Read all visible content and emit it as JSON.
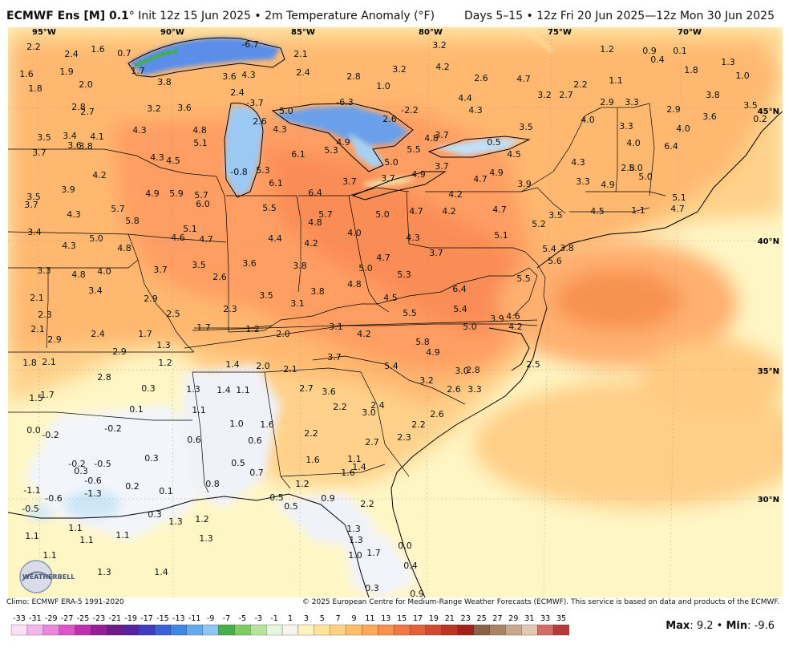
{
  "header": {
    "model": "ECMWF Ens [M] 0.1",
    "degree": "°",
    "init": "Init 12z 15 Jun 2025",
    "product": "2m Temperature Anomaly (°F)",
    "valid": "Days 5–15 • 12z Fri 20 Jun 2025—12z Mon 30 Jun 2025"
  },
  "footer": {
    "climo": "Climo: ECMWF ERA-5 1991-2020",
    "copyright": "© 2025 European Centre for Medium-Range Weather Forecasts (ECMWF). This service is based on data and products of the ECMWF.",
    "max_label": "Max",
    "max_value": "9.2",
    "min_label": "Min",
    "min_value": "-9.6"
  },
  "logo": "WEATHERBELL",
  "lon_labels": [
    "95°W",
    "90°W",
    "85°W",
    "80°W",
    "75°W",
    "70°W"
  ],
  "lat_labels": [
    "45°N",
    "40°N",
    "35°N",
    "30°N"
  ],
  "legend": {
    "ticks": [
      "-33",
      "-31",
      "-29",
      "-27",
      "-25",
      "-23",
      "-21",
      "-19",
      "-17",
      "-15",
      "-13",
      "-11",
      "-9",
      "-7",
      "-5",
      "-3",
      "-1",
      "1",
      "3",
      "5",
      "7",
      "9",
      "11",
      "13",
      "15",
      "17",
      "19",
      "21",
      "23",
      "25",
      "27",
      "29",
      "31",
      "33",
      "35"
    ],
    "colors": [
      "#fce0f8",
      "#f4b5ec",
      "#ea86dc",
      "#dc55c8",
      "#c02fb0",
      "#951f97",
      "#6e1b86",
      "#5423a0",
      "#3f3cc0",
      "#3a62d8",
      "#3f86e6",
      "#66a8ee",
      "#8fc5f2",
      "#46b04a",
      "#7fcc60",
      "#b5e49a",
      "#e6f5df",
      "#f6f4ea",
      "#fff3c0",
      "#ffe49a",
      "#ffd383",
      "#ffbf6c",
      "#ffa95a",
      "#f8914e",
      "#f07845",
      "#e2603a",
      "#cf4a2f",
      "#b93524",
      "#a0221b",
      "#8a6248",
      "#a98364",
      "#c7a88c",
      "#e0c8b2",
      "#d56a6a",
      "#b53a3a"
    ]
  },
  "map_labels": [
    [
      "2.2",
      42,
      58
    ],
    [
      "1.6",
      122,
      61
    ],
    [
      "2.4",
      89,
      67
    ],
    [
      "0.7",
      155,
      66
    ],
    [
      "-6.7",
      312,
      55
    ],
    [
      "2.1",
      375,
      67
    ],
    [
      "3.2",
      548,
      56
    ],
    [
      "1.2",
      757,
      61
    ],
    [
      "0.9",
      810,
      63
    ],
    [
      "0.1",
      848,
      63
    ],
    [
      "1.3",
      908,
      77
    ],
    [
      "0.4",
      820,
      74
    ],
    [
      "1.6",
      33,
      92
    ],
    [
      "1.9",
      83,
      89
    ],
    [
      "1.7",
      172,
      88
    ],
    [
      "3.6",
      286,
      95
    ],
    [
      "4.3",
      310,
      93
    ],
    [
      "2.4",
      378,
      90
    ],
    [
      "2.8",
      441,
      95
    ],
    [
      "3.2",
      498,
      86
    ],
    [
      "4.2",
      552,
      83
    ],
    [
      "2.6",
      600,
      97
    ],
    [
      "4.7",
      653,
      98
    ],
    [
      "1.8",
      862,
      87
    ],
    [
      "1.0",
      926,
      94
    ],
    [
      "1.8",
      44,
      110
    ],
    [
      "2.0",
      107,
      105
    ],
    [
      "3.8",
      205,
      102
    ],
    [
      "2.4",
      296,
      115
    ],
    [
      "1.0",
      478,
      107
    ],
    [
      "2.2",
      724,
      105
    ],
    [
      "1.1",
      768,
      100
    ],
    [
      "2.8",
      98,
      133
    ],
    [
      "2.7",
      109,
      139
    ],
    [
      "3.2",
      192,
      135
    ],
    [
      "3.6",
      230,
      134
    ],
    [
      "-3.7",
      318,
      128
    ],
    [
      "-6.3",
      430,
      127
    ],
    [
      "4.4",
      580,
      122
    ],
    [
      "3.2",
      679,
      118
    ],
    [
      "2.7",
      706,
      118
    ],
    [
      "2.9",
      757,
      127
    ],
    [
      "3.3",
      788,
      127
    ],
    [
      "3.8",
      889,
      118
    ],
    [
      "2.9",
      840,
      136
    ],
    [
      "3.5",
      936,
      131
    ],
    [
      "3.6",
      885,
      145
    ],
    [
      "-2.2",
      511,
      137
    ],
    [
      "2.6",
      486,
      148
    ],
    [
      "4.3",
      593,
      137
    ],
    [
      "4.0",
      733,
      149
    ],
    [
      "0.2",
      948,
      148
    ],
    [
      "5.0",
      357,
      138
    ],
    [
      "2.6",
      324,
      151
    ],
    [
      "4.3",
      349,
      161
    ],
    [
      "4.3",
      174,
      162
    ],
    [
      "4.8",
      249,
      162
    ],
    [
      "3.5",
      656,
      158
    ],
    [
      "3.3",
      781,
      157
    ],
    [
      "4.0",
      852,
      160
    ],
    [
      "6.4",
      837,
      182
    ],
    [
      "3.5",
      55,
      171
    ],
    [
      "3.4",
      87,
      169
    ],
    [
      "4.1",
      121,
      170
    ],
    [
      "3.6",
      93,
      181
    ],
    [
      "3.8",
      107,
      182
    ],
    [
      "5.1",
      250,
      178
    ],
    [
      "5.3",
      413,
      187
    ],
    [
      "4.9",
      428,
      177
    ],
    [
      "4.8",
      538,
      172
    ],
    [
      "3.7",
      551,
      168
    ],
    [
      "0.5",
      616,
      177
    ],
    [
      "4.5",
      641,
      192
    ],
    [
      "4.0",
      790,
      178
    ],
    [
      "3.7",
      49,
      190
    ],
    [
      "6.1",
      372,
      192
    ],
    [
      "5.5",
      516,
      186
    ],
    [
      "4.3",
      196,
      196
    ],
    [
      "4.5",
      216,
      200
    ],
    [
      "5.0",
      488,
      202
    ],
    [
      "4.3",
      721,
      202
    ],
    [
      "2.8",
      783,
      209
    ],
    [
      "5.0",
      793,
      209
    ],
    [
      "5.0",
      805,
      220
    ],
    [
      "-0.8",
      298,
      214
    ],
    [
      "5.3",
      328,
      212
    ],
    [
      "3.7",
      551,
      207
    ],
    [
      "4.2",
      124,
      218
    ],
    [
      "3.7",
      484,
      222
    ],
    [
      "4.9",
      522,
      217
    ],
    [
      "4.7",
      599,
      223
    ],
    [
      "4.9",
      619,
      215
    ],
    [
      "3.3",
      727,
      226
    ],
    [
      "3.9",
      654,
      229
    ],
    [
      "4.9",
      758,
      230
    ],
    [
      "6.1",
      344,
      228
    ],
    [
      "3.7",
      436,
      226
    ],
    [
      "3.9",
      85,
      236
    ],
    [
      "4.9",
      190,
      241
    ],
    [
      "5.9",
      220,
      241
    ],
    [
      "5.7",
      251,
      243
    ],
    [
      "6.4",
      393,
      240
    ],
    [
      "4.2",
      568,
      242
    ],
    [
      "5.1",
      847,
      246
    ],
    [
      "3.5",
      42,
      245
    ],
    [
      "6.0",
      253,
      254
    ],
    [
      "5.5",
      336,
      259
    ],
    [
      "4.7",
      845,
      260
    ],
    [
      "3.7",
      39,
      255
    ],
    [
      "4.2",
      560,
      263
    ],
    [
      "4.7",
      623,
      261
    ],
    [
      "4.7",
      519,
      263
    ],
    [
      "4.5",
      745,
      263
    ],
    [
      "1.1",
      796,
      262
    ],
    [
      "5.7",
      147,
      260
    ],
    [
      "4.3",
      92,
      267
    ],
    [
      "3.5",
      693,
      268
    ],
    [
      "5.7",
      406,
      267
    ],
    [
      "5.0",
      477,
      267
    ],
    [
      "5.8",
      165,
      275
    ],
    [
      "4.8",
      393,
      277
    ],
    [
      "5.2",
      672,
      279
    ],
    [
      "5.1",
      237,
      285
    ],
    [
      "4.0",
      442,
      290
    ],
    [
      "3.4",
      43,
      289
    ],
    [
      "5.0",
      120,
      297
    ],
    [
      "4.6",
      222,
      296
    ],
    [
      "4.7",
      257,
      298
    ],
    [
      "4.4",
      343,
      297
    ],
    [
      "4.3",
      515,
      296
    ],
    [
      "5.1",
      625,
      293
    ],
    [
      "4.2",
      388,
      303
    ],
    [
      "4.3",
      86,
      306
    ],
    [
      "4.8",
      155,
      309
    ],
    [
      "5.4",
      685,
      310
    ],
    [
      "3.8",
      707,
      309
    ],
    [
      "3.7",
      544,
      315
    ],
    [
      "4.7",
      478,
      321
    ],
    [
      "5.6",
      692,
      325
    ],
    [
      "3.3",
      55,
      337
    ],
    [
      "4.8",
      98,
      342
    ],
    [
      "4.0",
      130,
      338
    ],
    [
      "3.6",
      311,
      328
    ],
    [
      "3.8",
      374,
      331
    ],
    [
      "3.7",
      200,
      336
    ],
    [
      "3.5",
      248,
      330
    ],
    [
      "5.0",
      456,
      334
    ],
    [
      "5.3",
      504,
      342
    ],
    [
      "5.5",
      653,
      347
    ],
    [
      "2.6",
      274,
      345
    ],
    [
      "4.8",
      442,
      354
    ],
    [
      "6.4",
      573,
      360
    ],
    [
      "3.4",
      119,
      362
    ],
    [
      "3.8",
      396,
      363
    ],
    [
      "3.5",
      332,
      368
    ],
    [
      "2.9",
      188,
      372
    ],
    [
      "4.5",
      487,
      371
    ],
    [
      "2.1",
      46,
      371
    ],
    [
      "3.1",
      371,
      378
    ],
    [
      "5.4",
      574,
      385
    ],
    [
      "2.3",
      287,
      385
    ],
    [
      "2.5",
      216,
      391
    ],
    [
      "5.5",
      511,
      390
    ],
    [
      "2.3",
      56,
      392
    ],
    [
      "3.9",
      620,
      397
    ],
    [
      "4.6",
      640,
      394
    ],
    [
      "4.2",
      643,
      407
    ],
    [
      "5.0",
      586,
      407
    ],
    [
      "1.7",
      254,
      408
    ],
    [
      "1.2",
      315,
      410
    ],
    [
      "2.0",
      353,
      416
    ],
    [
      "3.1",
      419,
      407
    ],
    [
      "4.2",
      454,
      416
    ],
    [
      "2.1",
      47,
      410
    ],
    [
      "2.4",
      122,
      416
    ],
    [
      "1.7",
      181,
      416
    ],
    [
      "2.9",
      68,
      423
    ],
    [
      "1.3",
      204,
      430
    ],
    [
      "5.8",
      527,
      426
    ],
    [
      "4.9",
      540,
      439
    ],
    [
      "2.9",
      149,
      438
    ],
    [
      "3.7",
      417,
      445
    ],
    [
      "1.8",
      37,
      452
    ],
    [
      "2.1",
      61,
      451
    ],
    [
      "1.4",
      290,
      454
    ],
    [
      "2.0",
      328,
      456
    ],
    [
      "2.1",
      362,
      460
    ],
    [
      "1.2",
      206,
      452
    ],
    [
      "5.4",
      488,
      456
    ],
    [
      "2.5",
      665,
      454
    ],
    [
      "3.0",
      576,
      462
    ],
    [
      "2.8",
      590,
      461
    ],
    [
      "2.8",
      130,
      470
    ],
    [
      "3.2",
      532,
      474
    ],
    [
      "1.5",
      45,
      496
    ],
    [
      "1.7",
      59,
      492
    ],
    [
      "0.3",
      185,
      484
    ],
    [
      "1.3",
      241,
      485
    ],
    [
      "1.4",
      279,
      486
    ],
    [
      "1.1",
      303,
      486
    ],
    [
      "2.7",
      382,
      484
    ],
    [
      "3.6",
      410,
      488
    ],
    [
      "2.6",
      566,
      485
    ],
    [
      "3.3",
      592,
      485
    ],
    [
      "0.1",
      170,
      510
    ],
    [
      "1.1",
      248,
      511
    ],
    [
      "2.2",
      424,
      507
    ],
    [
      "2.4",
      471,
      505
    ],
    [
      "3.0",
      460,
      514
    ],
    [
      "2.6",
      545,
      516
    ],
    [
      "1.0",
      295,
      528
    ],
    [
      "1.6",
      333,
      529
    ],
    [
      "2.2",
      522,
      529
    ],
    [
      "0.0",
      42,
      536
    ],
    [
      "-0.2",
      63,
      542
    ],
    [
      "-0.2",
      141,
      534
    ],
    [
      "2.2",
      388,
      540
    ],
    [
      "2.3",
      504,
      545
    ],
    [
      "0.6",
      242,
      548
    ],
    [
      "0.6",
      318,
      549
    ],
    [
      "2.7",
      464,
      551
    ],
    [
      "0.3",
      189,
      571
    ],
    [
      "0.5",
      297,
      577
    ],
    [
      "1.6",
      390,
      573
    ],
    [
      "1.1",
      442,
      572
    ],
    [
      "1.4",
      448,
      582
    ],
    [
      "-0.2",
      96,
      578
    ],
    [
      "-0.5",
      128,
      578
    ],
    [
      "0.3",
      101,
      587
    ],
    [
      "1.6",
      434,
      589
    ],
    [
      "0.7",
      320,
      589
    ],
    [
      "-0.6",
      116,
      599
    ],
    [
      "0.2",
      165,
      606
    ],
    [
      "0.8",
      265,
      603
    ],
    [
      "1.2",
      377,
      603
    ],
    [
      "-1.1",
      40,
      611
    ],
    [
      "-1.3",
      116,
      615
    ],
    [
      "0.1",
      207,
      612
    ],
    [
      "0.5",
      345,
      620
    ],
    [
      "0.5",
      363,
      631
    ],
    [
      "0.9",
      409,
      621
    ],
    [
      "-0.6",
      67,
      621
    ],
    [
      "-0.5",
      38,
      634
    ],
    [
      "2.2",
      458,
      628
    ],
    [
      "0.3",
      193,
      641
    ],
    [
      "1.3",
      219,
      650
    ],
    [
      "1.2",
      252,
      647
    ],
    [
      "1.1",
      40,
      668
    ],
    [
      "1.1",
      94,
      658
    ],
    [
      "1.1",
      108,
      673
    ],
    [
      "1.1",
      153,
      667
    ],
    [
      "1.3",
      441,
      659
    ],
    [
      "1.3",
      257,
      671
    ],
    [
      "1.3",
      444,
      673
    ],
    [
      "1.1",
      62,
      692
    ],
    [
      "1.7",
      466,
      689
    ],
    [
      "1.0",
      443,
      692
    ],
    [
      "0.0",
      505,
      680
    ],
    [
      "0.4",
      512,
      705
    ],
    [
      "1.3",
      130,
      713
    ],
    [
      "1.4",
      201,
      713
    ],
    [
      "0.3",
      464,
      733
    ],
    [
      "0.9",
      520,
      740
    ]
  ]
}
